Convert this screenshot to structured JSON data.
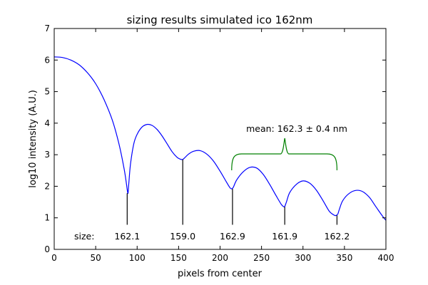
{
  "chart_data": {
    "type": "line",
    "title": "sizing results simulated ico 162nm",
    "xlabel": "pixels from center",
    "ylabel": "log10 intensity (A.U.)",
    "xlim": [
      0,
      400
    ],
    "ylim": [
      0,
      7
    ],
    "xticks": [
      0,
      50,
      100,
      150,
      200,
      250,
      300,
      350,
      400
    ],
    "yticks": [
      0,
      1,
      2,
      3,
      4,
      5,
      6,
      7
    ],
    "grid": false,
    "series": [
      {
        "color": "#0000ff",
        "x": [
          0,
          10,
          20,
          30,
          40,
          50,
          60,
          70,
          78,
          84,
          87,
          88,
          89,
          90,
          92,
          96,
          100,
          106,
          112,
          118,
          124,
          130,
          136,
          142,
          148,
          152,
          155,
          158,
          162,
          168,
          176,
          184,
          192,
          200,
          208,
          212,
          214,
          216,
          220,
          228,
          236,
          244,
          252,
          260,
          268,
          274,
          277,
          278,
          280,
          284,
          292,
          300,
          308,
          316,
          324,
          332,
          338,
          340,
          342,
          344,
          348,
          356,
          364,
          372,
          380,
          388,
          396,
          400
        ],
        "y": [
          6.1,
          6.08,
          6.0,
          5.85,
          5.6,
          5.25,
          4.75,
          4.1,
          3.35,
          2.6,
          2.1,
          1.9,
          1.78,
          2.1,
          2.7,
          3.35,
          3.65,
          3.88,
          3.96,
          3.93,
          3.8,
          3.6,
          3.35,
          3.1,
          2.92,
          2.86,
          2.85,
          2.92,
          3.02,
          3.11,
          3.13,
          3.02,
          2.8,
          2.48,
          2.12,
          1.95,
          1.92,
          1.97,
          2.2,
          2.46,
          2.6,
          2.58,
          2.38,
          2.05,
          1.68,
          1.42,
          1.35,
          1.36,
          1.5,
          1.8,
          2.06,
          2.17,
          2.1,
          1.88,
          1.55,
          1.2,
          1.08,
          1.08,
          1.12,
          1.28,
          1.55,
          1.78,
          1.87,
          1.83,
          1.65,
          1.35,
          1.05,
          0.92
        ]
      }
    ],
    "markers": [
      {
        "x": 88,
        "y": 1.78,
        "size": "162.1"
      },
      {
        "x": 155,
        "y": 2.85,
        "size": "159.0"
      },
      {
        "x": 215,
        "y": 1.92,
        "size": "162.9"
      },
      {
        "x": 278,
        "y": 1.35,
        "size": "161.9"
      },
      {
        "x": 341,
        "y": 1.08,
        "size": "162.2"
      }
    ],
    "marker_bottom": 0.78,
    "size_prefix": "size:",
    "mean_annotation": {
      "text": "mean: 162.3 ± 0.4 nm",
      "x_from": 214,
      "x_to": 341,
      "brace_center": 278,
      "color": "#008000"
    }
  }
}
